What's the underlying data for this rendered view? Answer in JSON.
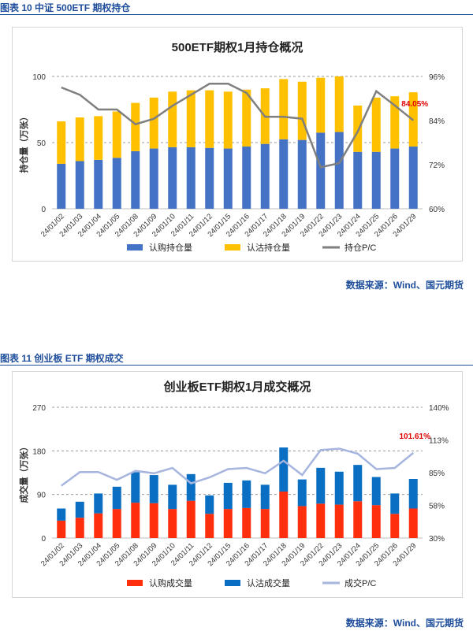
{
  "figures": [
    {
      "caption": "图表 10  中证 500ETF 期权持仓",
      "source": "数据来源：Wind、国元期货",
      "chart_data": {
        "type": "bar",
        "stacked": true,
        "title": "500ETF期权1月持仓概况",
        "ylabel": "持仓量（万张）",
        "ylim": [
          0,
          100
        ],
        "yticks": [
          0,
          50,
          100
        ],
        "y2lim": [
          0.6,
          0.96
        ],
        "y2ticks": [
          "60%",
          "72%",
          "84%",
          "96%"
        ],
        "categories": [
          "24/01/02",
          "24/01/03",
          "24/01/04",
          "24/01/05",
          "24/01/08",
          "24/01/09",
          "24/01/10",
          "24/01/11",
          "24/01/12",
          "24/01/15",
          "24/01/16",
          "24/01/17",
          "24/01/18",
          "24/01/19",
          "24/01/22",
          "24/01/23",
          "24/01/24",
          "24/01/25",
          "24/01/26",
          "24/01/29"
        ],
        "series": [
          {
            "name": "认购持仓量",
            "axis": "left",
            "kind": "bar",
            "color": "#4472c4",
            "values": [
              34,
              36,
              37,
              38.5,
              43.5,
              45.5,
              46.5,
              46.5,
              46,
              45.5,
              47,
              49,
              52.5,
              52,
              57.5,
              58,
              43,
              43,
              45.5,
              47
            ]
          },
          {
            "name": "认沽持仓量",
            "axis": "left",
            "kind": "bar",
            "color": "#ffc000",
            "values": [
              32,
              33,
              33,
              35,
              36.5,
              38.5,
              42,
              43,
              43.5,
              43,
              43,
              42,
              45.5,
              44,
              41.5,
              42,
              35,
              41,
              39.5,
              41
            ]
          },
          {
            "name": "持仓P/C",
            "axis": "right",
            "kind": "line",
            "color": "#7f7f7f",
            "values": [
              0.93,
              0.91,
              0.87,
              0.87,
              0.83,
              0.845,
              0.88,
              0.91,
              0.94,
              0.94,
              0.915,
              0.85,
              0.85,
              0.845,
              0.713,
              0.724,
              0.81,
              0.92,
              0.881,
              0.8405
            ]
          }
        ],
        "annotation": "84.05%",
        "annotation_color": "#e00000",
        "legend_position": "bottom",
        "grid": "dashed horizontal"
      }
    },
    {
      "caption": "图表 11  创业板 ETF 期权成交",
      "source": "数据来源：Wind、国元期货",
      "chart_data": {
        "type": "bar",
        "stacked": true,
        "title": "创业板ETF期权1月成交概况",
        "ylabel": "成交量（万张）",
        "ylim": [
          0,
          270
        ],
        "yticks": [
          0,
          90,
          180,
          270
        ],
        "y2lim": [
          0.3,
          1.4
        ],
        "y2ticks": [
          "30%",
          "58%",
          "85%",
          "113%",
          "140%"
        ],
        "categories": [
          "24/01/02",
          "24/01/03",
          "24/01/04",
          "24/01/05",
          "24/01/08",
          "24/01/09",
          "24/01/10",
          "24/01/11",
          "24/01/12",
          "24/01/15",
          "24/01/16",
          "24/01/17",
          "24/01/18",
          "24/01/19",
          "24/01/22",
          "24/01/23",
          "24/01/24",
          "24/01/25",
          "24/01/26",
          "24/01/29"
        ],
        "series": [
          {
            "name": "认购成交量",
            "axis": "left",
            "kind": "bar",
            "color": "#ff2f0e",
            "values": [
              36,
              42,
              51,
              60,
              73,
              72,
              60,
              77,
              50,
              60,
              62,
              60,
              96,
              66,
              71,
              69,
              76,
              68,
              50,
              61
            ]
          },
          {
            "name": "认沽成交量",
            "axis": "left",
            "kind": "bar",
            "color": "#0a6fc2",
            "values": [
              25,
              33,
              41,
              46,
              63,
              58,
              50,
              55,
              38,
              54,
              57,
              50,
              91,
              55,
              74,
              68,
              75,
              58,
              42,
              61
            ]
          },
          {
            "name": "成交P/C",
            "axis": "right",
            "kind": "line",
            "color": "#a6b5de",
            "values": [
              0.74,
              0.855,
              0.855,
              0.79,
              0.865,
              0.845,
              0.89,
              0.76,
              0.81,
              0.88,
              0.89,
              0.845,
              0.95,
              0.83,
              1.04,
              1.052,
              1.01,
              0.88,
              0.89,
              1.0161
            ]
          }
        ],
        "annotation": "101.61%",
        "annotation_color": "#e00000",
        "legend_position": "bottom",
        "grid": "dashed horizontal"
      }
    }
  ]
}
